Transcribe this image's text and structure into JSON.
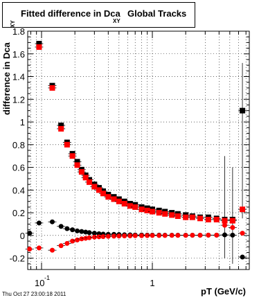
{
  "title": {
    "main": "Fitted difference in Dca",
    "sub": "XY",
    "rest": "Global Tracks"
  },
  "timestamp": "Thu Oct 27 23:00:18 2011",
  "chart_data": {
    "type": "scatter",
    "xlabel": "pT (GeV/c)",
    "ylabel": "difference in Dca",
    "ylabel_sub": "XY",
    "xscale": "log",
    "xlim": [
      0.075,
      7.5
    ],
    "ylim": [
      -0.3,
      1.8
    ],
    "grid": true,
    "x_tick_labels": [
      "10-1",
      "1"
    ],
    "y_tick_labels": [
      "-0.2",
      "0",
      "0.2",
      "0.4",
      "0.6",
      "0.8",
      "1",
      "1.2",
      "1.4",
      "1.6",
      "1.8"
    ],
    "series": [
      {
        "marker": "square",
        "color": "#000000",
        "x": [
          0.095,
          0.125,
          0.15,
          0.17,
          0.19,
          0.21,
          0.23,
          0.25,
          0.27,
          0.3,
          0.33,
          0.36,
          0.4,
          0.45,
          0.5,
          0.56,
          0.63,
          0.7,
          0.8,
          0.9,
          1.0,
          1.15,
          1.3,
          1.5,
          1.7,
          2.0,
          2.3,
          2.7,
          3.2,
          3.8,
          4.5,
          5.3,
          6.5
        ],
        "y": [
          1.69,
          1.32,
          0.97,
          0.82,
          0.72,
          0.65,
          0.58,
          0.53,
          0.49,
          0.45,
          0.42,
          0.39,
          0.36,
          0.34,
          0.32,
          0.3,
          0.28,
          0.27,
          0.25,
          0.24,
          0.23,
          0.22,
          0.21,
          0.2,
          0.19,
          0.18,
          0.17,
          0.16,
          0.16,
          0.15,
          0.14,
          0.14,
          1.1
        ]
      },
      {
        "marker": "square",
        "color": "#ff0000",
        "x": [
          0.095,
          0.125,
          0.15,
          0.17,
          0.19,
          0.21,
          0.23,
          0.25,
          0.27,
          0.3,
          0.33,
          0.36,
          0.4,
          0.45,
          0.5,
          0.56,
          0.63,
          0.7,
          0.8,
          0.9,
          1.0,
          1.15,
          1.3,
          1.5,
          1.7,
          2.0,
          2.3,
          2.7,
          3.2,
          3.8,
          4.5,
          5.3,
          6.5
        ],
        "y": [
          1.66,
          1.3,
          0.94,
          0.8,
          0.7,
          0.62,
          0.56,
          0.51,
          0.47,
          0.43,
          0.4,
          0.37,
          0.34,
          0.32,
          0.3,
          0.28,
          0.26,
          0.25,
          0.23,
          0.22,
          0.21,
          0.2,
          0.19,
          0.18,
          0.17,
          0.16,
          0.16,
          0.15,
          0.14,
          0.14,
          0.13,
          0.13,
          0.23
        ]
      },
      {
        "marker": "circle",
        "color": "#000000",
        "x": [
          0.078,
          0.095,
          0.125,
          0.15,
          0.17,
          0.19,
          0.21,
          0.23,
          0.25,
          0.27,
          0.3,
          0.33,
          0.36,
          0.4,
          0.45,
          0.5,
          0.56,
          0.63,
          0.7,
          0.8,
          0.9,
          1.0,
          1.15,
          1.3,
          1.5,
          1.7,
          2.0,
          2.3,
          2.7,
          3.2,
          3.8,
          4.5,
          5.3,
          6.5
        ],
        "y": [
          0.02,
          0.11,
          0.12,
          0.08,
          0.06,
          0.05,
          0.04,
          0.035,
          0.03,
          0.025,
          0.02,
          0.015,
          0.012,
          0.01,
          0.01,
          0.008,
          0.006,
          0.005,
          0.004,
          0.004,
          0.003,
          0.003,
          0.003,
          0.002,
          0.002,
          0.002,
          0.002,
          0.002,
          0.002,
          0.003,
          0.003,
          0.005,
          0.003,
          -0.19
        ]
      },
      {
        "marker": "circle",
        "color": "#ff0000",
        "x": [
          0.078,
          0.095,
          0.125,
          0.15,
          0.17,
          0.19,
          0.21,
          0.23,
          0.25,
          0.27,
          0.3,
          0.33,
          0.36,
          0.4,
          0.45,
          0.5,
          0.56,
          0.63,
          0.7,
          0.8,
          0.9,
          1.0,
          1.15,
          1.3,
          1.5,
          1.7,
          2.0,
          2.3,
          2.7,
          3.2,
          3.8,
          4.5,
          5.3,
          6.5
        ],
        "y": [
          -0.12,
          -0.11,
          -0.13,
          -0.09,
          -0.07,
          -0.05,
          -0.04,
          -0.03,
          -0.025,
          -0.02,
          -0.015,
          -0.012,
          -0.01,
          -0.008,
          -0.006,
          -0.005,
          -0.004,
          -0.003,
          -0.002,
          -0.002,
          -0.001,
          0.0,
          0.0,
          0.0,
          0.001,
          0.001,
          0.001,
          0.002,
          0.002,
          0.003,
          0.003,
          0.09,
          0.07,
          0.02
        ]
      }
    ]
  }
}
